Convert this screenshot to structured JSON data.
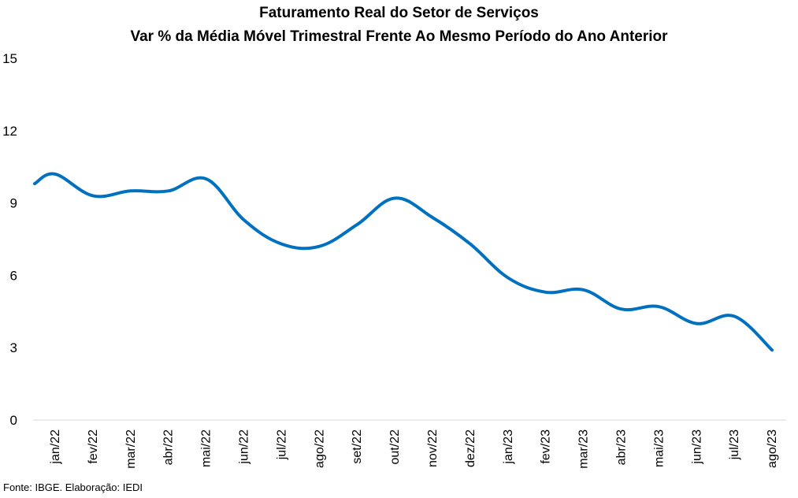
{
  "chart_data": {
    "type": "line",
    "title": "Faturamento Real do Setor de Serviços",
    "subtitle": "Var % da Média Móvel Trimestral Frente Ao Mesmo Período do Ano Anterior",
    "xlabel": "",
    "ylabel": "",
    "categories": [
      "jan/22",
      "fev/22",
      "mar/22",
      "abr/22",
      "mai/22",
      "jun/22",
      "jul/22",
      "ago/22",
      "set/22",
      "out/22",
      "nov/22",
      "dez/22",
      "jan/23",
      "fev/23",
      "mar/23",
      "abr/23",
      "mai/23",
      "jun/23",
      "jul/23",
      "ago/23"
    ],
    "series": [
      {
        "name": "",
        "color": "#0070C0",
        "start_value": 9.8,
        "values": [
          10.2,
          9.3,
          9.5,
          9.5,
          10.0,
          8.3,
          7.3,
          7.2,
          8.1,
          9.2,
          8.4,
          7.3,
          5.9,
          5.3,
          5.4,
          4.6,
          4.7,
          4.0,
          4.3,
          2.9
        ]
      }
    ],
    "ylim": [
      0,
      15
    ],
    "yticks": [
      0,
      3,
      6,
      9,
      12,
      15
    ],
    "grid": false,
    "legend": "none"
  },
  "source": "Fonte: IBGE. Elaboração: IEDI"
}
